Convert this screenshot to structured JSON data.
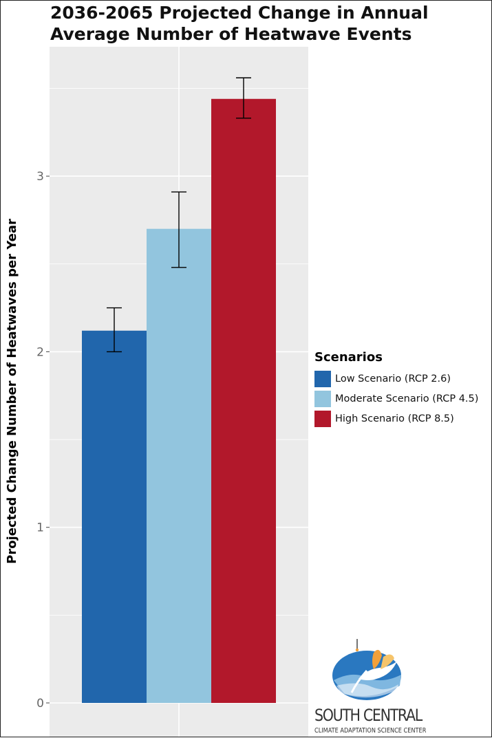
{
  "chart_data": {
    "type": "bar",
    "title": "2036-2065 Projected Change in Annual Average Number of Heatwave Events",
    "title_lines": [
      "2036-2065 Projected Change in Annual",
      "Average Number of Heatwave Events"
    ],
    "xlabel": "",
    "ylabel": "Projected Change Number of Heatwaves per Year",
    "ylim": [
      -0.17,
      3.73
    ],
    "yticks": [
      0,
      1,
      2,
      3
    ],
    "ytick_labels": [
      "0",
      "1",
      "2",
      "3"
    ],
    "grid": true,
    "categories": [
      "Low Scenario (RCP 2.6)",
      "Moderate Scenario (RCP 4.5)",
      "High Scenario (RCP 8.5)"
    ],
    "values": [
      2.12,
      2.7,
      3.44
    ],
    "error_low": [
      2.0,
      2.48,
      3.33
    ],
    "error_high": [
      2.25,
      2.91,
      3.56
    ],
    "colors": [
      "#2166ac",
      "#92c5de",
      "#b2182b"
    ],
    "legend": {
      "title": "Scenarios",
      "placement": "right",
      "entries": [
        "Low Scenario (RCP 2.6)",
        "Moderate Scenario (RCP 4.5)",
        "High Scenario (RCP 8.5)"
      ]
    }
  },
  "logo": {
    "name": "SOUTH CENTRAL",
    "subtitle": "CLIMATE ADAPTATION SCIENCE CENTER",
    "colors": {
      "ellipse": "#2a78c0",
      "ground": "#7fb7e0",
      "bird": "#ffffff",
      "wing": "#f2a03a"
    }
  },
  "panel_background": "#ebebeb",
  "gridline_color": "#ffffff"
}
